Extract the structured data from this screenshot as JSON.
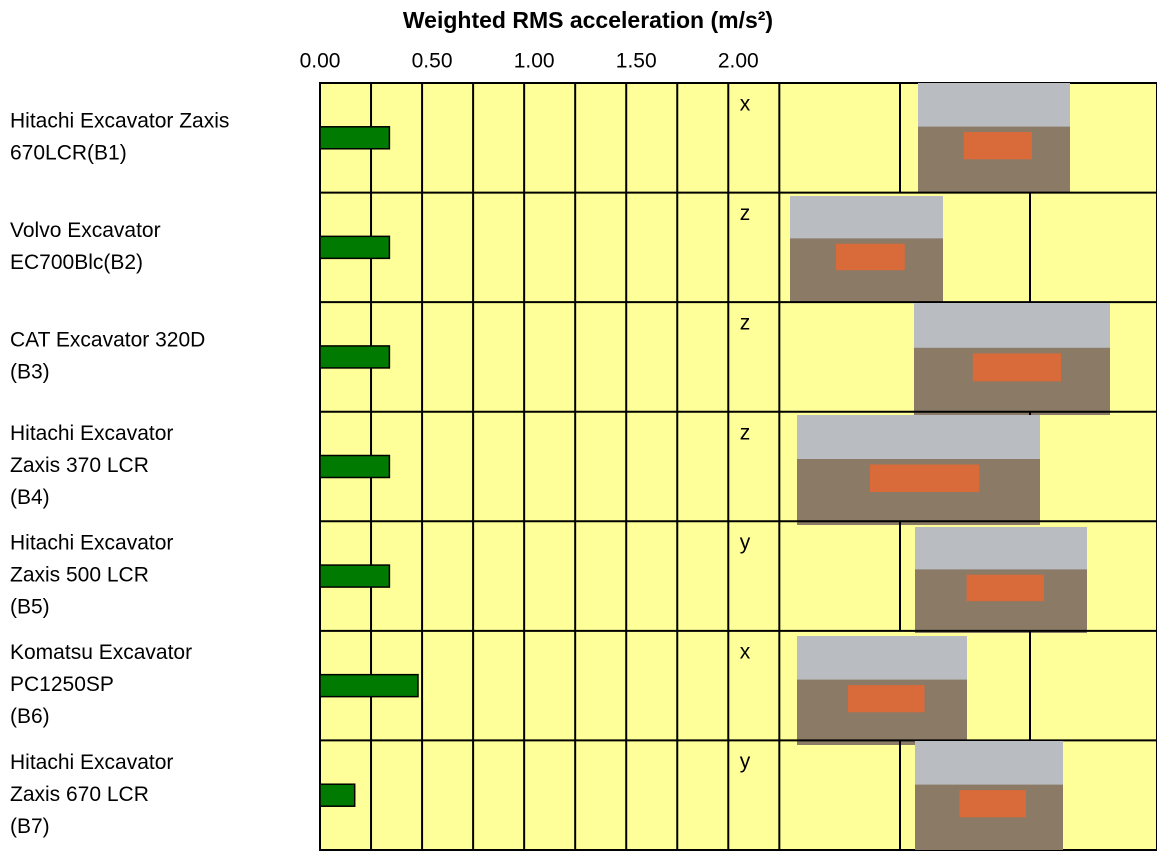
{
  "chart_data": {
    "type": "bar",
    "orientation": "horizontal",
    "title": "Weighted RMS acceleration (m/s²)",
    "categories": [
      [
        "Hitachi Excavator Zaxis",
        "670LCR(B1)"
      ],
      [
        "Volvo Excavator",
        "EC700Blc(B2)"
      ],
      [
        "CAT Excavator 320D",
        "(B3)"
      ],
      [
        "Hitachi Excavator",
        "Zaxis 370 LCR",
        "(B4)"
      ],
      [
        "Hitachi Excavator",
        "Zaxis 500 LCR",
        "(B5)"
      ],
      [
        "Komatsu Excavator",
        "PC1250SP",
        "(B6)"
      ],
      [
        "Hitachi Excavator",
        "Zaxis 670 LCR",
        "(B7)"
      ]
    ],
    "values": [
      0.34,
      0.34,
      0.34,
      0.34,
      0.34,
      0.48,
      0.17
    ],
    "annotations": [
      "x",
      "z",
      "z",
      "z",
      "y",
      "x",
      "y"
    ],
    "color": "#007a00",
    "background": "#ffff99",
    "xlim": [
      0,
      4.1
    ],
    "xticks": [
      {
        "value": 0,
        "label": "0.00"
      },
      {
        "value": 0.5,
        "label": "0.50"
      },
      {
        "value": 1,
        "label": "1.00"
      },
      {
        "value": 1.5,
        "label": "1.50"
      },
      {
        "value": 2,
        "label": "2.00"
      }
    ],
    "grid": true
  }
}
